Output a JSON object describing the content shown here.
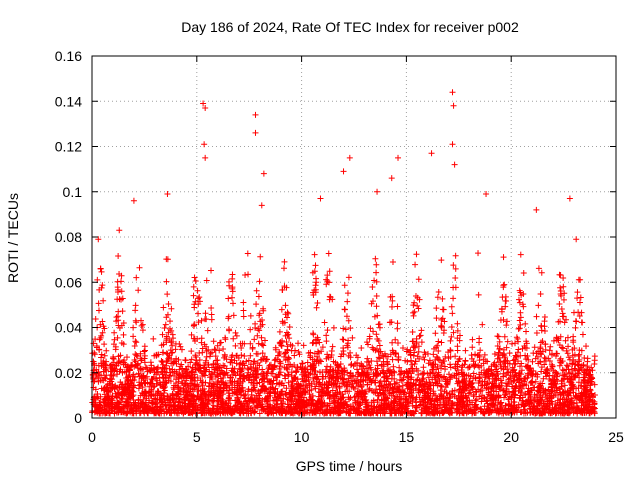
{
  "chart_data": {
    "type": "scatter",
    "title": "Day 186 of 2024, Rate Of TEC Index for receiver p002",
    "xlabel": "GPS time / hours",
    "ylabel": "ROTI / TECUs",
    "xlim": [
      0,
      25
    ],
    "ylim": [
      0,
      0.16
    ],
    "xticks": [
      0,
      5,
      10,
      15,
      20,
      25
    ],
    "xtick_labels": [
      "0",
      "5",
      "10",
      "15",
      "20",
      "25"
    ],
    "yticks": [
      0,
      0.02,
      0.04,
      0.06,
      0.08,
      0.1,
      0.12,
      0.14,
      0.16
    ],
    "ytick_labels": [
      "0",
      "0.02",
      "0.04",
      "0.06",
      "0.08",
      "0.1",
      "0.12",
      "0.14",
      "0.16"
    ],
    "grid": true,
    "marker": "plus",
    "marker_color": "#ff0000",
    "series": [
      {
        "name": "ROTI",
        "x_range": [
          0,
          24
        ],
        "baseline_range": [
          0.002,
          0.02
        ],
        "typical_max": 0.08,
        "peaks": [
          {
            "x": 0.3,
            "y": 0.079
          },
          {
            "x": 1.3,
            "y": 0.083
          },
          {
            "x": 2.0,
            "y": 0.096
          },
          {
            "x": 3.6,
            "y": 0.099
          },
          {
            "x": 5.3,
            "y": 0.139
          },
          {
            "x": 5.4,
            "y": 0.137
          },
          {
            "x": 5.35,
            "y": 0.121
          },
          {
            "x": 5.4,
            "y": 0.115
          },
          {
            "x": 7.8,
            "y": 0.134
          },
          {
            "x": 7.8,
            "y": 0.126
          },
          {
            "x": 8.2,
            "y": 0.108
          },
          {
            "x": 8.1,
            "y": 0.094
          },
          {
            "x": 10.9,
            "y": 0.097
          },
          {
            "x": 12.0,
            "y": 0.109
          },
          {
            "x": 12.3,
            "y": 0.115
          },
          {
            "x": 13.6,
            "y": 0.1
          },
          {
            "x": 14.3,
            "y": 0.106
          },
          {
            "x": 14.6,
            "y": 0.115
          },
          {
            "x": 16.2,
            "y": 0.117
          },
          {
            "x": 17.2,
            "y": 0.144
          },
          {
            "x": 17.25,
            "y": 0.138
          },
          {
            "x": 17.2,
            "y": 0.121
          },
          {
            "x": 17.3,
            "y": 0.112
          },
          {
            "x": 18.8,
            "y": 0.099
          },
          {
            "x": 21.2,
            "y": 0.092
          },
          {
            "x": 22.8,
            "y": 0.097
          },
          {
            "x": 23.1,
            "y": 0.079
          }
        ]
      }
    ]
  }
}
